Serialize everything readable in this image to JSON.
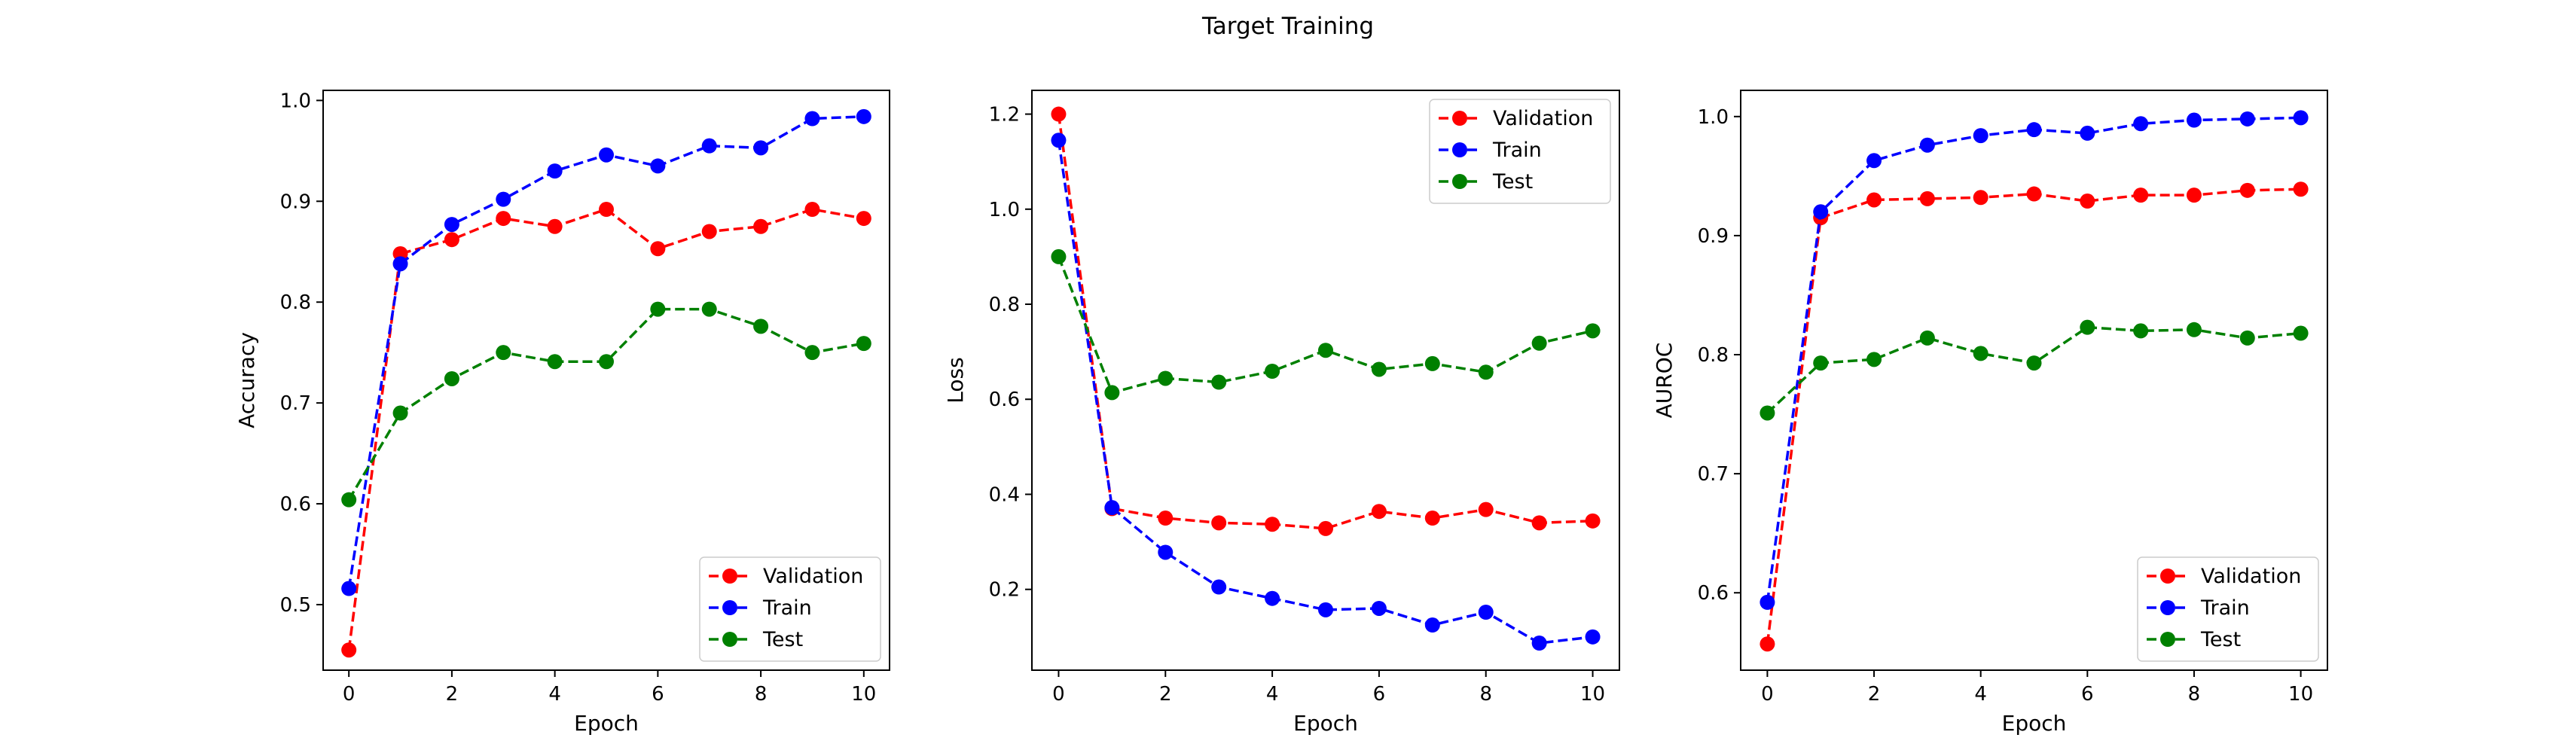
{
  "figure": {
    "title": "Target Training"
  },
  "chart_data": [
    {
      "type": "line",
      "title": "",
      "xlabel": "Epoch",
      "ylabel": "Accuracy",
      "x": [
        0,
        1,
        2,
        3,
        4,
        5,
        6,
        7,
        8,
        9,
        10
      ],
      "xlim": [
        -0.5,
        10.5
      ],
      "ylim": [
        0.435,
        1.01
      ],
      "xticks": [
        0,
        2,
        4,
        6,
        8,
        10
      ],
      "yticks": [
        0.5,
        0.6,
        0.7,
        0.8,
        0.9,
        1.0
      ],
      "ytick_labels": [
        "0.5",
        "0.6",
        "0.7",
        "0.8",
        "0.9",
        "1.0"
      ],
      "legend": "lower-right",
      "series": [
        {
          "name": "Validation",
          "color": "#ff0000",
          "values": [
            0.455,
            0.848,
            0.862,
            0.883,
            0.875,
            0.892,
            0.853,
            0.87,
            0.875,
            0.892,
            0.883
          ]
        },
        {
          "name": "Train",
          "color": "#0000ff",
          "values": [
            0.516,
            0.838,
            0.877,
            0.902,
            0.93,
            0.946,
            0.935,
            0.955,
            0.953,
            0.982,
            0.984
          ]
        },
        {
          "name": "Test",
          "color": "#008000",
          "values": [
            0.604,
            0.69,
            0.724,
            0.75,
            0.741,
            0.741,
            0.793,
            0.793,
            0.776,
            0.75,
            0.759
          ]
        }
      ]
    },
    {
      "type": "line",
      "title": "",
      "xlabel": "Epoch",
      "ylabel": "Loss",
      "x": [
        0,
        1,
        2,
        3,
        4,
        5,
        6,
        7,
        8,
        9,
        10
      ],
      "xlim": [
        -0.5,
        10.5
      ],
      "ylim": [
        0.03,
        1.25
      ],
      "xticks": [
        0,
        2,
        4,
        6,
        8,
        10
      ],
      "yticks": [
        0.2,
        0.4,
        0.6,
        0.8,
        1.0,
        1.2
      ],
      "ytick_labels": [
        "0.2",
        "0.4",
        "0.6",
        "0.8",
        "1.0",
        "1.2"
      ],
      "legend": "upper-right",
      "series": [
        {
          "name": "Validation",
          "color": "#ff0000",
          "values": [
            1.2,
            0.37,
            0.35,
            0.34,
            0.337,
            0.328,
            0.364,
            0.35,
            0.368,
            0.34,
            0.344
          ]
        },
        {
          "name": "Train",
          "color": "#0000ff",
          "values": [
            1.145,
            0.372,
            0.278,
            0.205,
            0.181,
            0.157,
            0.16,
            0.125,
            0.152,
            0.087,
            0.1
          ]
        },
        {
          "name": "Test",
          "color": "#008000",
          "values": [
            0.9,
            0.614,
            0.644,
            0.636,
            0.659,
            0.703,
            0.663,
            0.675,
            0.657,
            0.718,
            0.744
          ]
        }
      ]
    },
    {
      "type": "line",
      "title": "",
      "xlabel": "Epoch",
      "ylabel": "AUROC",
      "x": [
        0,
        1,
        2,
        3,
        4,
        5,
        6,
        7,
        8,
        9,
        10
      ],
      "xlim": [
        -0.5,
        10.5
      ],
      "ylim": [
        0.535,
        1.022
      ],
      "xticks": [
        0,
        2,
        4,
        6,
        8,
        10
      ],
      "yticks": [
        0.6,
        0.7,
        0.8,
        0.9,
        1.0
      ],
      "ytick_labels": [
        "0.6",
        "0.7",
        "0.8",
        "0.9",
        "1.0"
      ],
      "legend": "lower-right",
      "series": [
        {
          "name": "Validation",
          "color": "#ff0000",
          "values": [
            0.557,
            0.915,
            0.93,
            0.931,
            0.932,
            0.935,
            0.929,
            0.934,
            0.934,
            0.938,
            0.939
          ]
        },
        {
          "name": "Train",
          "color": "#0000ff",
          "values": [
            0.592,
            0.92,
            0.963,
            0.976,
            0.984,
            0.989,
            0.986,
            0.994,
            0.997,
            0.998,
            0.999
          ]
        },
        {
          "name": "Test",
          "color": "#008000",
          "values": [
            0.751,
            0.793,
            0.796,
            0.814,
            0.801,
            0.793,
            0.823,
            0.82,
            0.821,
            0.814,
            0.818
          ]
        }
      ]
    }
  ]
}
